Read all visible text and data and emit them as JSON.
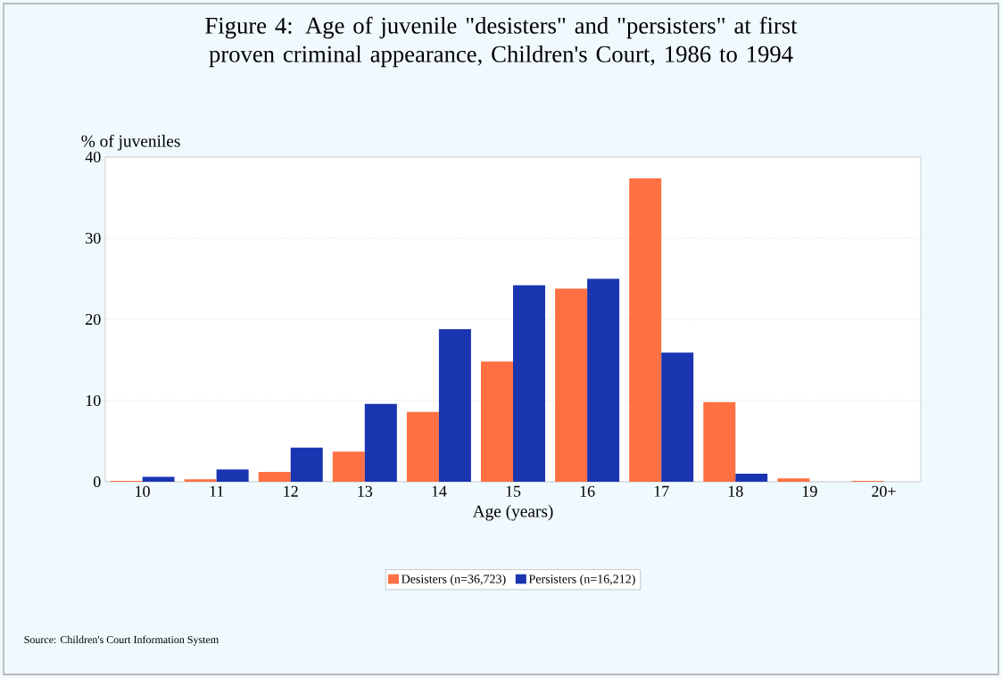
{
  "chart_data": {
    "type": "bar",
    "title": "Figure 4:  Age of juvenile \"desisters\" and \"persisters\" at first proven criminal appearance, Children's Court, 1986 to 1994",
    "xlabel": "Age (years)",
    "ylabel": "% of juveniles",
    "categories": [
      "10",
      "11",
      "12",
      "13",
      "14",
      "15",
      "16",
      "17",
      "18",
      "19",
      "20+"
    ],
    "series": [
      {
        "name": "Desisters (n=36,723)",
        "color": "#ff7043",
        "values": [
          0.1,
          0.3,
          1.2,
          3.7,
          8.6,
          14.8,
          23.8,
          37.4,
          9.8,
          0.4,
          0.1
        ]
      },
      {
        "name": "Persisters (n=16,212)",
        "color": "#1a35b0",
        "values": [
          0.6,
          1.5,
          4.2,
          9.6,
          18.8,
          24.2,
          25.0,
          15.9,
          1.0,
          null,
          null
        ]
      }
    ],
    "ylim": [
      0,
      40
    ],
    "yticks": [
      0,
      10,
      20,
      30,
      40
    ],
    "grid": "y",
    "legend": "bottom",
    "annotations": [
      "Source:  Children's Court Information System"
    ]
  }
}
